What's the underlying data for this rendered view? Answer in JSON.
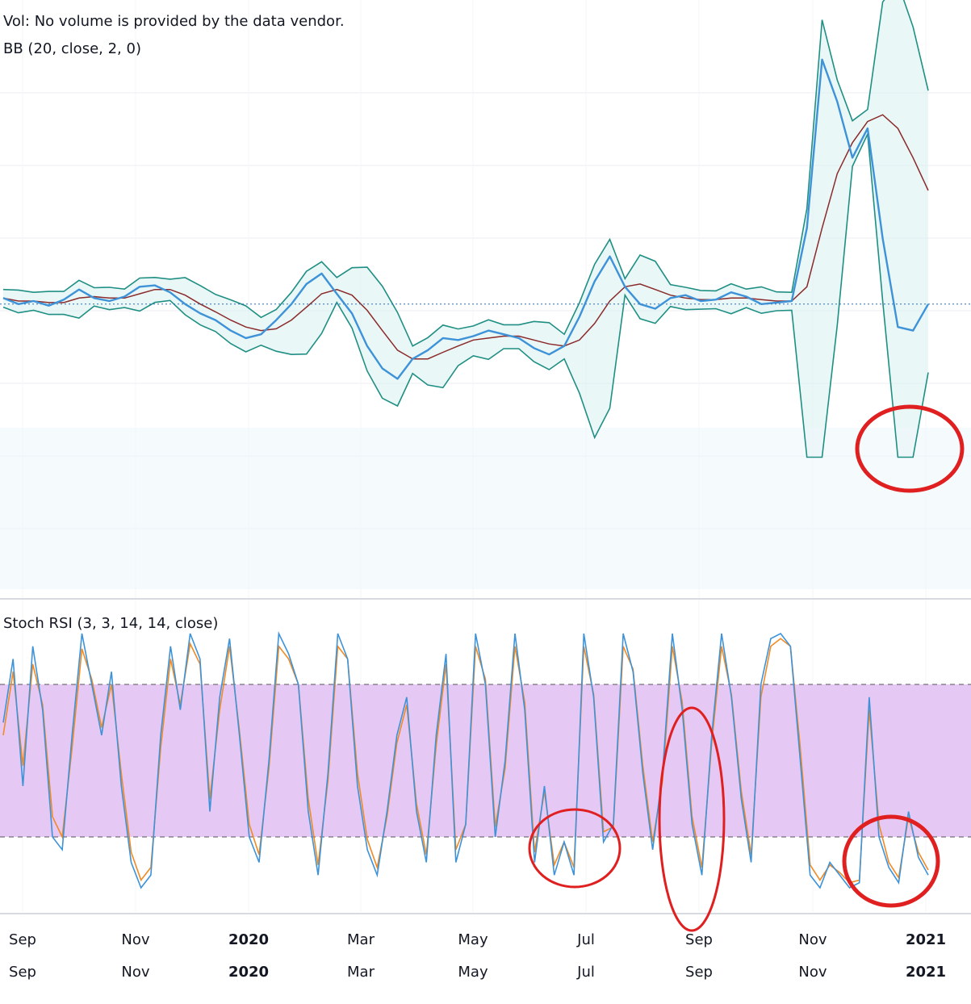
{
  "header": {
    "vol_note": "Vol: No volume is provided by the data vendor.",
    "bb_label": "BB (20, close, 2, 0)"
  },
  "stoch_panel": {
    "label": "Stoch RSI (3, 3, 14, 14, close)",
    "upper_band": 80,
    "lower_band": 20
  },
  "x_axis": {
    "labels": [
      "Sep",
      "Nov",
      "2020",
      "Mar",
      "May",
      "Jul",
      "Sep",
      "Nov",
      "2021"
    ],
    "bold_labels": [
      "2020",
      "2021"
    ]
  },
  "colors": {
    "price": "#3d92d8",
    "bb_band": "#1f8f84",
    "bb_basis": "#8b2a2a",
    "bb_fill": "#d9f0f0",
    "stoch_k": "#3d92d8",
    "stoch_d": "#f08a24",
    "stoch_band_fill": "#e6c8f5",
    "annotation": "#e02020",
    "grid": "#eceef2"
  },
  "chart_data": [
    {
      "type": "line",
      "title": "",
      "series": [
        {
          "name": "",
          "values": [
            0.62,
            0.58,
            0.6,
            0.57,
            0.61,
            0.68,
            0.62,
            0.6,
            0.63,
            0.7,
            0.71,
            0.66,
            0.58,
            0.52,
            0.48,
            0.42,
            0.38,
            0.4,
            0.48,
            0.58,
            0.72,
            0.8,
            0.65,
            0.52,
            0.34,
            0.24,
            0.2,
            0.28,
            0.32,
            0.38,
            0.37,
            0.39,
            0.42,
            0.4,
            0.38,
            0.33,
            0.3,
            0.34,
            0.5,
            0.74,
            0.94,
            0.7,
            0.58,
            0.55,
            0.62,
            0.64,
            0.6,
            0.61,
            0.66,
            0.63,
            0.58,
            0.59,
            0.6,
            1.2,
            3.5,
            2.8,
            2.0,
            2.4,
            1.1,
            0.44,
            0.42,
            0.58
          ]
        },
        {
          "name": "",
          "values": [
            0.62,
            0.6,
            0.6,
            0.59,
            0.59,
            0.62,
            0.63,
            0.62,
            0.62,
            0.65,
            0.68,
            0.68,
            0.64,
            0.58,
            0.53,
            0.48,
            0.44,
            0.42,
            0.43,
            0.48,
            0.56,
            0.65,
            0.68,
            0.64,
            0.54,
            0.42,
            0.32,
            0.28,
            0.28,
            0.31,
            0.34,
            0.37,
            0.38,
            0.39,
            0.39,
            0.37,
            0.35,
            0.34,
            0.37,
            0.46,
            0.6,
            0.7,
            0.72,
            0.68,
            0.64,
            0.62,
            0.61,
            0.61,
            0.62,
            0.62,
            0.61,
            0.6,
            0.6,
            0.7,
            1.2,
            1.8,
            2.2,
            2.5,
            2.6,
            2.4,
            2.0,
            1.6
          ]
        }
      ],
      "ylim": [
        0,
        4
      ]
    },
    {
      "type": "line",
      "title": "",
      "series": [
        {
          "name": "",
          "values": [
            65,
            90,
            40,
            95,
            70,
            20,
            15,
            60,
            100,
            80,
            60,
            85,
            40,
            10,
            0,
            5,
            60,
            95,
            70,
            100,
            90,
            30,
            75,
            98,
            60,
            20,
            10,
            50,
            100,
            92,
            80,
            30,
            5,
            45,
            100,
            90,
            40,
            15,
            5,
            30,
            60,
            75,
            30,
            10,
            60,
            92,
            10,
            25,
            100,
            80,
            20,
            50,
            100,
            70,
            10,
            40,
            5,
            18,
            5,
            100,
            75,
            18,
            25,
            100,
            85,
            45,
            15,
            45,
            100,
            70,
            25,
            5,
            60,
            100,
            75,
            35,
            10,
            80,
            98,
            100,
            95,
            50,
            5,
            0,
            10,
            5,
            0,
            2,
            75,
            20,
            8,
            2,
            30,
            12,
            5
          ]
        },
        {
          "name": "",
          "values": [
            60,
            85,
            48,
            88,
            72,
            28,
            20,
            55,
            94,
            82,
            63,
            80,
            45,
            14,
            3,
            8,
            55,
            90,
            72,
            96,
            88,
            35,
            70,
            95,
            62,
            25,
            13,
            47,
            95,
            90,
            80,
            35,
            9,
            42,
            95,
            90,
            45,
            19,
            8,
            28,
            57,
            72,
            33,
            13,
            56,
            88,
            15,
            25,
            95,
            82,
            24,
            47,
            95,
            73,
            14,
            38,
            9,
            18,
            8,
            95,
            76,
            22,
            24,
            95,
            86,
            48,
            18,
            42,
            95,
            73,
            28,
            8,
            57,
            95,
            76,
            38,
            13,
            75,
            95,
            98,
            95,
            55,
            9,
            3,
            9,
            6,
            2,
            3,
            70,
            25,
            10,
            4,
            28,
            14,
            7
          ]
        }
      ],
      "ylim": [
        0,
        100
      ]
    }
  ]
}
